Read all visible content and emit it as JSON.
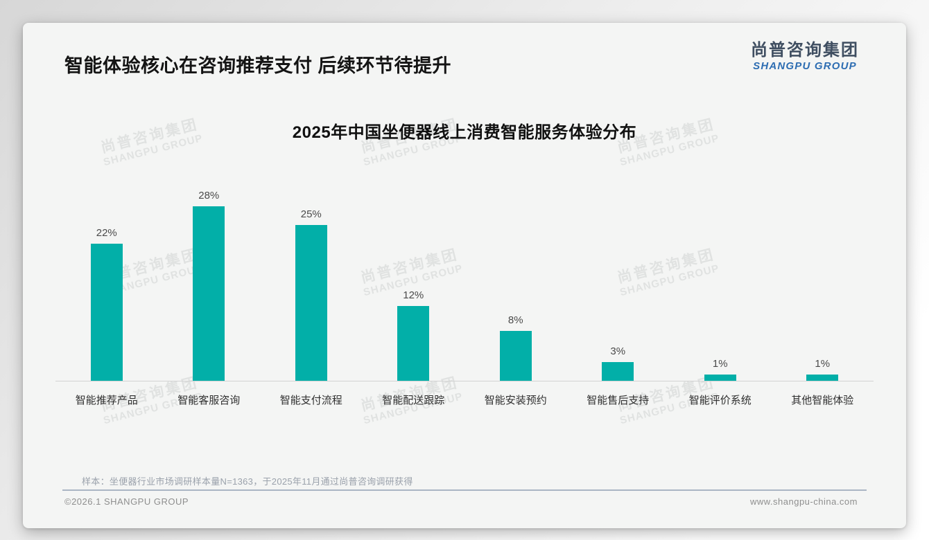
{
  "page": {
    "title": "智能体验核心在咨询推荐支付 后续环节待提升",
    "logo": {
      "cn": "尚普咨询集团",
      "en": "SHANGPU GROUP"
    },
    "watermark": {
      "cn": "尚普咨询集团",
      "en": "SHANGPU GROUP"
    },
    "footnote": "样本：坐便器行业市场调研样本量N=1363，于2025年11月通过尚普咨询调研获得",
    "copyright": "©2026.1 SHANGPU GROUP",
    "website": "www.shangpu-china.com"
  },
  "chart_data": {
    "type": "bar",
    "title": "2025年中国坐便器线上消费智能服务体验分布",
    "categories": [
      "智能推荐产品",
      "智能客服咨询",
      "智能支付流程",
      "智能配送跟踪",
      "智能安装预约",
      "智能售后支持",
      "智能评价系统",
      "其他智能体验"
    ],
    "values": [
      22,
      28,
      25,
      12,
      8,
      3,
      1,
      1
    ],
    "value_labels": [
      "22%",
      "28%",
      "25%",
      "12%",
      "8%",
      "3%",
      "1%",
      "1%"
    ],
    "unit": "%",
    "xlabel": "",
    "ylabel": "",
    "ylim": [
      0,
      30
    ],
    "grid": false,
    "legend": false,
    "bar_color": "#02AFA8"
  },
  "colors": {
    "bar": "#02AFA8",
    "logo_cn": "#3F4E61",
    "logo_en": "#2D6DB2",
    "divider": "#AAB5C4",
    "card_bg": "#F4F5F4"
  }
}
